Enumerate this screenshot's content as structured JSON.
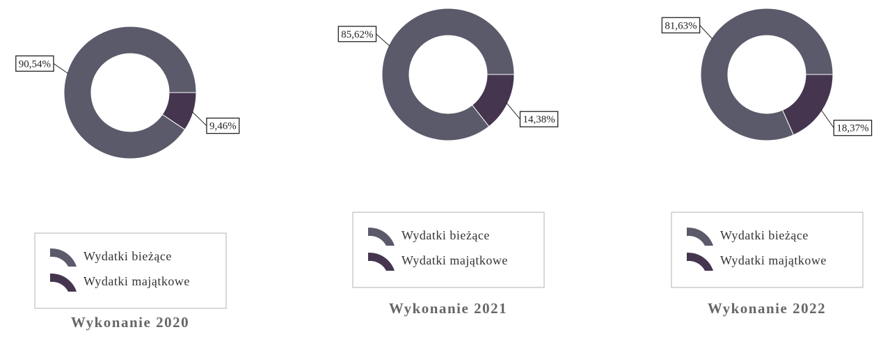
{
  "chart_data": [
    {
      "type": "pie",
      "donut": true,
      "title": "Wykonanie 2020",
      "categories": [
        "Wydatki bieżące",
        "Wydatki majątkowe"
      ],
      "values": [
        90.54,
        9.46
      ],
      "value_labels": [
        "90,54%",
        "9,46%"
      ],
      "colors": [
        "#5b5a6b",
        "#45354f"
      ]
    },
    {
      "type": "pie",
      "donut": true,
      "title": "Wykonanie 2021",
      "categories": [
        "Wydatki bieżące",
        "Wydatki majątkowe"
      ],
      "values": [
        85.62,
        14.38
      ],
      "value_labels": [
        "85,62%",
        "14,38%"
      ],
      "colors": [
        "#5b5a6b",
        "#45354f"
      ]
    },
    {
      "type": "pie",
      "donut": true,
      "title": "Wykonanie 2022",
      "categories": [
        "Wydatki bieżące",
        "Wydatki majątkowe"
      ],
      "values": [
        81.63,
        18.37
      ],
      "value_labels": [
        "81,63%",
        "18,37%"
      ],
      "colors": [
        "#5b5a6b",
        "#45354f"
      ]
    }
  ]
}
